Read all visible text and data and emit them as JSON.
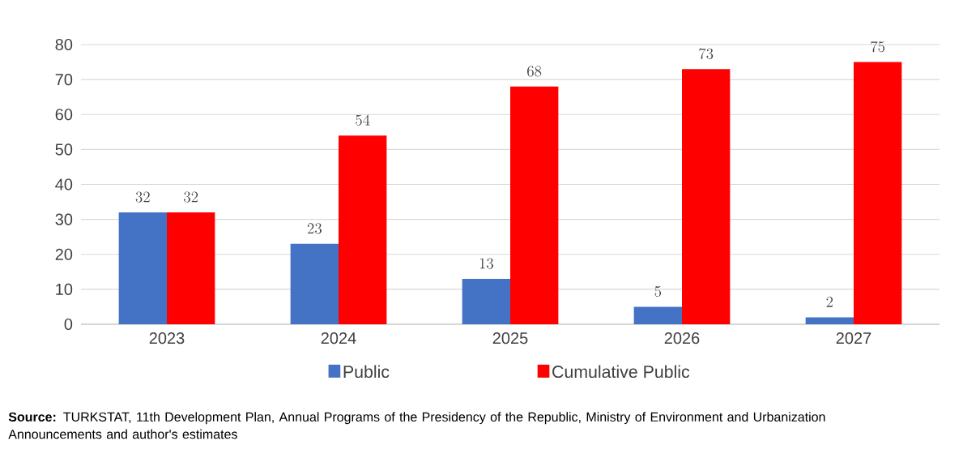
{
  "chart_data": {
    "type": "bar",
    "categories": [
      "2023",
      "2024",
      "2025",
      "2026",
      "2027"
    ],
    "series": [
      {
        "name": "Public",
        "color": "#4472c4",
        "values": [
          32,
          23,
          13,
          5,
          2
        ]
      },
      {
        "name": "Cumulative Public",
        "color": "#ff0000",
        "values": [
          32,
          54,
          68,
          73,
          75
        ]
      }
    ],
    "ylim": [
      0,
      80
    ],
    "yticks": [
      0,
      10,
      20,
      30,
      40,
      50,
      60,
      70,
      80
    ],
    "grid": "y",
    "legend": "bottom",
    "data_labels": true,
    "annotations": [
      "**Source:** TURKSTAT, 11th Development Plan, Annual Programs of the Presidency of the Republic, Ministry of Environment and Urbanization Announcements and author's estimates"
    ]
  }
}
